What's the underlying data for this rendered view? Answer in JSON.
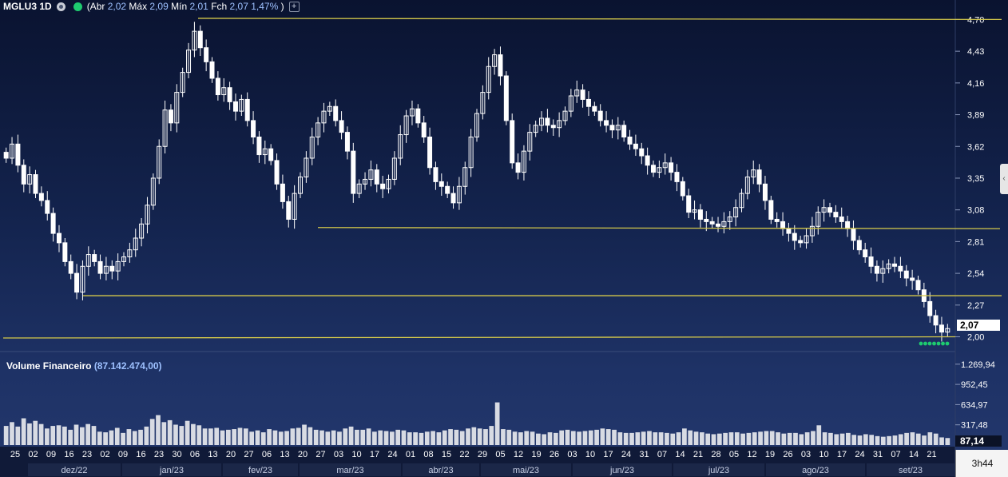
{
  "header": {
    "symbol": "MGLU3 1D",
    "open_label": "(Abr",
    "open_value": "2,02",
    "high_label": "Máx",
    "high_value": "2,09",
    "low_label": "Mín",
    "low_value": "2,01",
    "close_label": "Fch",
    "close_value": "2,07",
    "change": "1,47%",
    "close_paren": ")"
  },
  "volume_title": {
    "label": "Volume Financeiro",
    "value": "(87.142.474,00)"
  },
  "last_price_tag": "2,07",
  "last_volume_tag": "87,14",
  "clock": "3h44",
  "colors": {
    "background_top": "#0a1330",
    "background_bottom": "#24386d",
    "candle": "#ffffff",
    "support_line": "#d4c84a",
    "volume_bar": "#d8dbe3",
    "live_dot": "#1ecb6f"
  },
  "chart_data": {
    "type": "candlestick",
    "title": "MGLU3 1D",
    "price_axis_ticks": [
      "4,70",
      "4,43",
      "4,16",
      "3,89",
      "3,62",
      "3,35",
      "3,08",
      "2,81",
      "2,54",
      "2,27",
      "2,00"
    ],
    "price_range": [
      1.99,
      4.73
    ],
    "volume_axis_ticks": [
      "1.269,94",
      "952,45",
      "634,97",
      "317,48"
    ],
    "volume_range": [
      0,
      1280
    ],
    "x_day_ticks": [
      "25",
      "02",
      "09",
      "16",
      "23",
      "02",
      "09",
      "16",
      "23",
      "30",
      "06",
      "13",
      "20",
      "27",
      "06",
      "13",
      "20",
      "27",
      "03",
      "10",
      "17",
      "24",
      "01",
      "08",
      "15",
      "22",
      "29",
      "05",
      "12",
      "19",
      "26",
      "03",
      "10",
      "17",
      "24",
      "31",
      "07",
      "14",
      "21",
      "28",
      "05",
      "12",
      "19",
      "26",
      "03",
      "10",
      "17",
      "24",
      "31",
      "07",
      "14",
      "21"
    ],
    "month_labels": [
      "dez/22",
      "jan/23",
      "fev/23",
      "mar/23",
      "abr/23",
      "mai/23",
      "jun/23",
      "jul/23",
      "ago/23",
      "set/23"
    ],
    "horizontal_lines": [
      {
        "from_index": 1,
        "to_index": 0,
        "start": 4.71,
        "end": 4.7
      },
      {
        "from_index": 0,
        "to_index": 0,
        "start": 2.93,
        "end": 2.92
      },
      {
        "from_index": 0,
        "to_index": 0,
        "start": 2.35,
        "end": 2.35
      },
      {
        "from_index": 0,
        "to_index": 0,
        "start": 1.99,
        "end": 2.0
      }
    ],
    "price_path": [
      3.52,
      3.64,
      3.46,
      3.3,
      3.38,
      3.22,
      3.16,
      3.05,
      2.88,
      2.8,
      2.64,
      2.54,
      2.38,
      2.6,
      2.7,
      2.64,
      2.54,
      2.6,
      2.56,
      2.64,
      2.68,
      2.74,
      2.84,
      2.96,
      3.12,
      3.35,
      3.62,
      3.93,
      3.82,
      4.08,
      4.25,
      4.44,
      4.6,
      4.46,
      4.34,
      4.2,
      4.06,
      4.12,
      4.0,
      3.92,
      4.02,
      3.84,
      3.7,
      3.55,
      3.6,
      3.5,
      3.3,
      3.15,
      3.0,
      3.22,
      3.36,
      3.52,
      3.7,
      3.82,
      3.92,
      3.96,
      3.84,
      3.74,
      3.58,
      3.22,
      3.3,
      3.34,
      3.42,
      3.3,
      3.26,
      3.34,
      3.52,
      3.72,
      3.88,
      3.94,
      3.82,
      3.7,
      3.44,
      3.32,
      3.28,
      3.22,
      3.14,
      3.28,
      3.44,
      3.7,
      3.9,
      4.08,
      4.3,
      4.4,
      4.22,
      3.84,
      3.48,
      3.4,
      3.58,
      3.74,
      3.8,
      3.86,
      3.8,
      3.78,
      3.84,
      3.92,
      4.05,
      4.1,
      4.02,
      3.96,
      3.92,
      3.84,
      3.8,
      3.76,
      3.8,
      3.7,
      3.64,
      3.6,
      3.54,
      3.46,
      3.4,
      3.44,
      3.48,
      3.4,
      3.32,
      3.2,
      3.06,
      3.08,
      3.0,
      2.98,
      2.96,
      2.94,
      2.98,
      3.02,
      3.1,
      3.22,
      3.36,
      3.42,
      3.3,
      3.16,
      3.0,
      2.98,
      2.92,
      2.88,
      2.82,
      2.8,
      2.86,
      2.94,
      3.06,
      3.1,
      3.06,
      3.02,
      2.98,
      2.92,
      2.82,
      2.74,
      2.68,
      2.6,
      2.54,
      2.58,
      2.62,
      2.6,
      2.56,
      2.5,
      2.48,
      2.4,
      2.3,
      2.18,
      2.1,
      2.04,
      2.07
    ],
    "volume_path": [
      300,
      360,
      290,
      420,
      340,
      380,
      330,
      260,
      300,
      310,
      290,
      240,
      320,
      280,
      330,
      300,
      210,
      200,
      230,
      270,
      190,
      250,
      220,
      240,
      290,
      410,
      470,
      360,
      390,
      320,
      300,
      380,
      330,
      310,
      260,
      260,
      270,
      230,
      240,
      250,
      270,
      260,
      210,
      230,
      200,
      250,
      230,
      210,
      220,
      260,
      270,
      320,
      280,
      240,
      230,
      210,
      230,
      210,
      260,
      290,
      240,
      240,
      260,
      210,
      230,
      220,
      210,
      240,
      230,
      200,
      200,
      190,
      210,
      220,
      200,
      230,
      250,
      240,
      220,
      260,
      280,
      260,
      250,
      300,
      670,
      250,
      240,
      210,
      200,
      220,
      210,
      180,
      170,
      200,
      190,
      230,
      240,
      220,
      210,
      220,
      230,
      240,
      260,
      250,
      240,
      200,
      190,
      190,
      200,
      210,
      220,
      200,
      200,
      190,
      180,
      200,
      260,
      230,
      210,
      200,
      180,
      170,
      180,
      190,
      200,
      200,
      180,
      190,
      200,
      210,
      220,
      220,
      200,
      180,
      190,
      190,
      170,
      200,
      220,
      310,
      200,
      190,
      170,
      180,
      190,
      160,
      150,
      170,
      160,
      140,
      130,
      140,
      150,
      170,
      190,
      200,
      180,
      150,
      200,
      180,
      120,
      110
    ]
  }
}
